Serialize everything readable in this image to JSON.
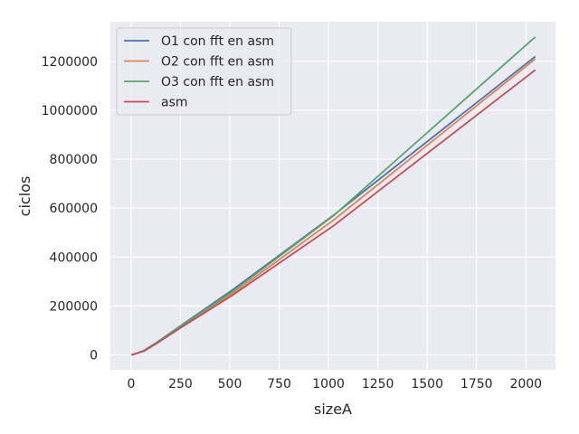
{
  "chart_data": {
    "type": "line",
    "xlabel": "sizeA",
    "ylabel": "ciclos",
    "xlim": [
      -105,
      2150
    ],
    "ylim": [
      -61000,
      1362000
    ],
    "x_ticks": [
      0,
      250,
      500,
      750,
      1000,
      1250,
      1500,
      1750,
      2000
    ],
    "y_ticks": [
      0,
      200000,
      400000,
      600000,
      800000,
      1000000,
      1200000
    ],
    "grid": true,
    "legend_position": "top-left",
    "background": "#eaeaf2",
    "series": [
      {
        "name": "O1 con fft en asm",
        "color": "#4c72b0",
        "x": [
          2,
          4,
          8,
          16,
          32,
          64,
          128,
          256,
          512,
          1024,
          2048
        ],
        "y": [
          300,
          600,
          1400,
          3000,
          8000,
          17000,
          50000,
          122000,
          265000,
          570000,
          1220000
        ]
      },
      {
        "name": "O2 con fft en asm",
        "color": "#dd8452",
        "x": [
          2,
          4,
          8,
          16,
          32,
          64,
          128,
          256,
          512,
          1024,
          2048
        ],
        "y": [
          300,
          600,
          1400,
          2900,
          7600,
          16000,
          48000,
          116000,
          250000,
          550000,
          1210000
        ]
      },
      {
        "name": "O3 con fft en asm",
        "color": "#55a868",
        "x": [
          2,
          4,
          8,
          16,
          32,
          64,
          128,
          256,
          512,
          1024,
          2048
        ],
        "y": [
          300,
          600,
          1400,
          3000,
          7900,
          17000,
          50000,
          120000,
          258000,
          568000,
          1300000
        ]
      },
      {
        "name": "asm",
        "color": "#c44e52",
        "x": [
          2,
          4,
          8,
          16,
          32,
          64,
          128,
          256,
          512,
          1024,
          2048
        ],
        "y": [
          300,
          600,
          1300,
          2800,
          7200,
          15000,
          46000,
          113000,
          243000,
          527000,
          1165000
        ]
      }
    ]
  }
}
